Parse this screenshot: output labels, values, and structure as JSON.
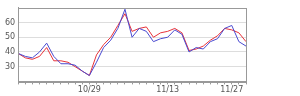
{
  "chart_data": {
    "type": "line",
    "categories": [
      null,
      null,
      null,
      null,
      null,
      null,
      null,
      null,
      null,
      null,
      "10/29",
      null,
      null,
      null,
      null,
      null,
      null,
      null,
      null,
      null,
      null,
      "11/13",
      null,
      null,
      null,
      null,
      null,
      null,
      null,
      null,
      "11/27",
      null,
      null
    ],
    "series": [
      {
        "color": "#4a4ad0",
        "values": [
          39,
          37,
          36,
          40,
          46,
          37,
          32,
          32,
          31,
          27,
          24,
          33,
          43,
          48,
          56,
          69,
          50,
          56,
          54,
          47,
          49,
          50,
          55,
          52,
          40,
          43,
          42,
          47,
          49,
          56,
          58,
          47,
          44
        ]
      },
      {
        "color": "#e8333a",
        "values": [
          39,
          36,
          35,
          37,
          43,
          34,
          34,
          33,
          30,
          27,
          24,
          38,
          45,
          50,
          58,
          66,
          54,
          56,
          57,
          50,
          53,
          54,
          56,
          53,
          41,
          42,
          44,
          48,
          51,
          56,
          55,
          53,
          47
        ]
      }
    ],
    "ylim": [
      20,
      70
    ],
    "yticks": [
      30,
      40,
      50,
      60
    ],
    "grid": true
  }
}
